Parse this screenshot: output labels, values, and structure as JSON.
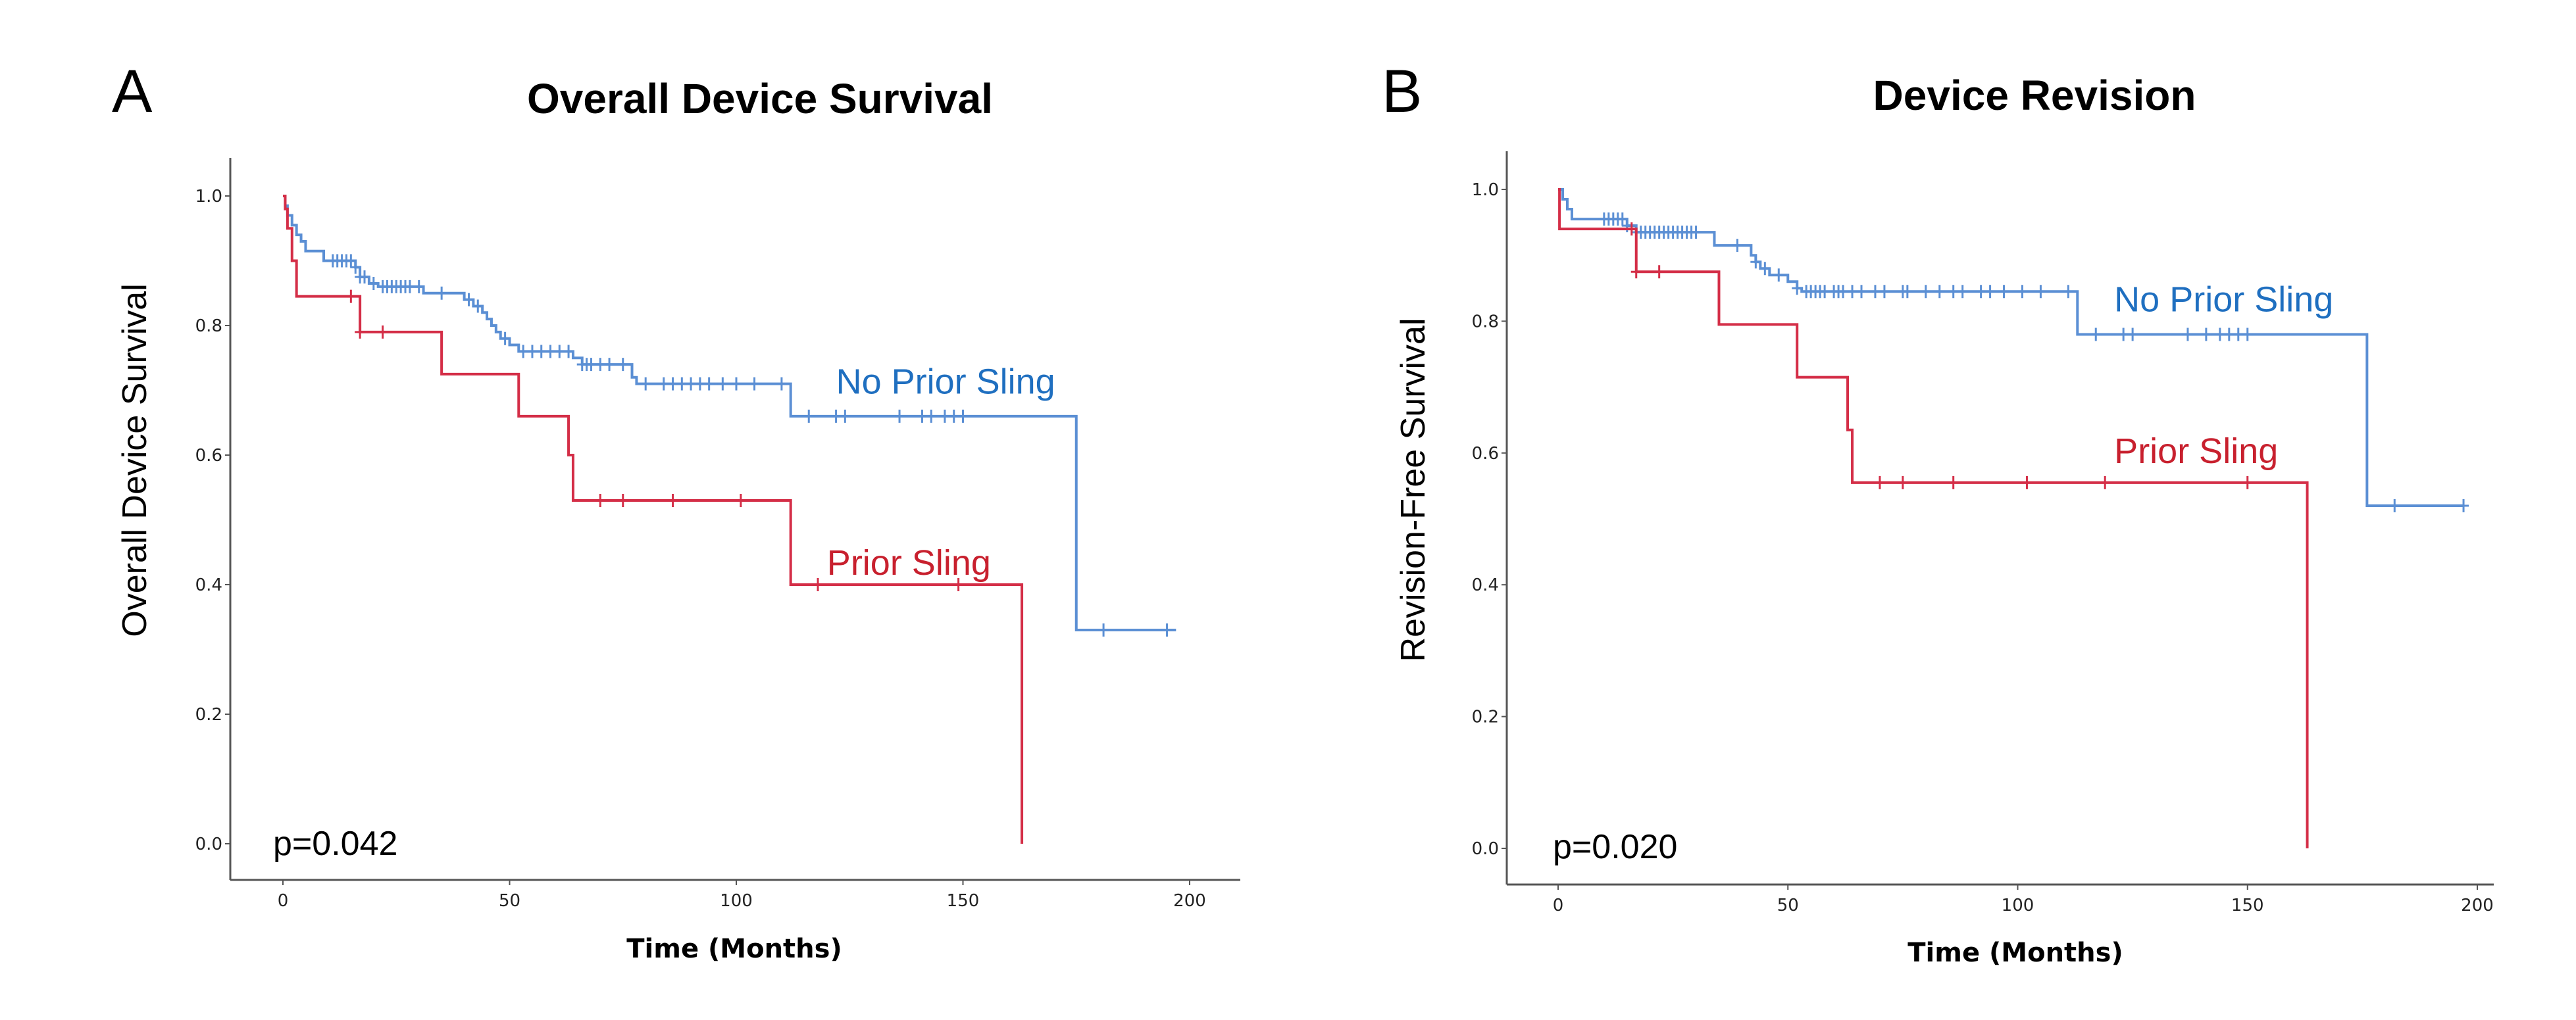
{
  "colors": {
    "no_prior": "#5b8fd4",
    "prior": "#d42e47",
    "no_prior_label": "#1f6fc0",
    "prior_label": "#c8202e"
  },
  "chart_data": [
    {
      "type": "line",
      "panel": "A",
      "title": "Overall Device Survival",
      "xlabel": "Time (Months)",
      "ylabel": "Overall Device Survival",
      "xlim": [
        0,
        200
      ],
      "ylim": [
        0,
        1
      ],
      "xticks": [
        "0",
        "50",
        "100",
        "150",
        "200"
      ],
      "yticks": [
        "0.0",
        "0.2",
        "0.4",
        "0.6",
        "0.8",
        "1.0"
      ],
      "xtick_values": [
        0,
        50,
        100,
        150,
        200
      ],
      "ytick_values": [
        0,
        0.2,
        0.4,
        0.6,
        0.8,
        1.0
      ],
      "grid": false,
      "annotation": "p=0.042",
      "series": [
        {
          "name": "No Prior Sling",
          "color_key": "no_prior",
          "label_key": "no_prior_label",
          "label_anchor": [
            122,
            0.695
          ],
          "steps": [
            [
              0,
              1.0
            ],
            [
              0.5,
              0.985
            ],
            [
              1,
              0.97
            ],
            [
              2,
              0.955
            ],
            [
              3,
              0.94
            ],
            [
              4,
              0.93
            ],
            [
              5,
              0.915
            ],
            [
              9,
              0.9
            ],
            [
              16,
              0.89
            ],
            [
              17,
              0.875
            ],
            [
              19,
              0.865
            ],
            [
              21,
              0.86
            ],
            [
              31,
              0.85
            ],
            [
              40,
              0.84
            ],
            [
              42,
              0.83
            ],
            [
              44,
              0.82
            ],
            [
              45,
              0.81
            ],
            [
              46,
              0.8
            ],
            [
              47,
              0.79
            ],
            [
              48,
              0.78
            ],
            [
              50,
              0.77
            ],
            [
              52,
              0.76
            ],
            [
              64,
              0.75
            ],
            [
              66,
              0.74
            ],
            [
              77,
              0.72
            ],
            [
              78,
              0.71
            ],
            [
              112,
              0.66
            ],
            [
              175,
              0.33
            ],
            [
              197,
              0.33
            ]
          ],
          "censors": [
            [
              11,
              0.9
            ],
            [
              12,
              0.9
            ],
            [
              13,
              0.9
            ],
            [
              14,
              0.9
            ],
            [
              15,
              0.9
            ],
            [
              16,
              0.89
            ],
            [
              17,
              0.875
            ],
            [
              18,
              0.875
            ],
            [
              20,
              0.865
            ],
            [
              22,
              0.86
            ],
            [
              23,
              0.86
            ],
            [
              24,
              0.86
            ],
            [
              25,
              0.86
            ],
            [
              26,
              0.86
            ],
            [
              27,
              0.86
            ],
            [
              28,
              0.86
            ],
            [
              30,
              0.86
            ],
            [
              35,
              0.85
            ],
            [
              41,
              0.84
            ],
            [
              43,
              0.83
            ],
            [
              49,
              0.78
            ],
            [
              53,
              0.76
            ],
            [
              55,
              0.76
            ],
            [
              57,
              0.76
            ],
            [
              59,
              0.76
            ],
            [
              61,
              0.76
            ],
            [
              63,
              0.76
            ],
            [
              66,
              0.74
            ],
            [
              67,
              0.74
            ],
            [
              68,
              0.74
            ],
            [
              70,
              0.74
            ],
            [
              72,
              0.74
            ],
            [
              75,
              0.74
            ],
            [
              80,
              0.71
            ],
            [
              84,
              0.71
            ],
            [
              86,
              0.71
            ],
            [
              88,
              0.71
            ],
            [
              90,
              0.71
            ],
            [
              92,
              0.71
            ],
            [
              94,
              0.71
            ],
            [
              97,
              0.71
            ],
            [
              100,
              0.71
            ],
            [
              104,
              0.71
            ],
            [
              110,
              0.71
            ],
            [
              116,
              0.66
            ],
            [
              122,
              0.66
            ],
            [
              124,
              0.66
            ],
            [
              136,
              0.66
            ],
            [
              141,
              0.66
            ],
            [
              143,
              0.66
            ],
            [
              146,
              0.66
            ],
            [
              148,
              0.66
            ],
            [
              150,
              0.66
            ],
            [
              181,
              0.33
            ],
            [
              195,
              0.33
            ]
          ]
        },
        {
          "name": "Prior Sling",
          "color_key": "prior",
          "label_key": "prior_label",
          "label_anchor": [
            120,
            0.415
          ],
          "steps": [
            [
              0,
              1.0
            ],
            [
              0.5,
              0.98
            ],
            [
              1,
              0.95
            ],
            [
              2,
              0.9
            ],
            [
              3,
              0.845
            ],
            [
              17,
              0.79
            ],
            [
              35,
              0.725
            ],
            [
              52,
              0.66
            ],
            [
              63,
              0.6
            ],
            [
              64,
              0.53
            ],
            [
              112,
              0.4
            ],
            [
              163,
              0.0
            ]
          ],
          "censors": [
            [
              15,
              0.845
            ],
            [
              17,
              0.79
            ],
            [
              22,
              0.79
            ],
            [
              70,
              0.53
            ],
            [
              75,
              0.53
            ],
            [
              86,
              0.53
            ],
            [
              101,
              0.53
            ],
            [
              118,
              0.4
            ],
            [
              149,
              0.4
            ]
          ]
        }
      ]
    },
    {
      "type": "line",
      "panel": "B",
      "title": "Device Revision",
      "xlabel": "Time (Months)",
      "ylabel": "Revision-Free Survival",
      "xlim": [
        0,
        200
      ],
      "ylim": [
        0,
        1
      ],
      "xticks": [
        "0",
        "50",
        "100",
        "150",
        "200"
      ],
      "yticks": [
        "0.0",
        "0.2",
        "0.4",
        "0.6",
        "0.8",
        "1.0"
      ],
      "xtick_values": [
        0,
        50,
        100,
        150,
        200
      ],
      "ytick_values": [
        0,
        0.2,
        0.4,
        0.6,
        0.8,
        1.0
      ],
      "grid": false,
      "annotation": "p=0.020",
      "series": [
        {
          "name": "No Prior Sling",
          "color_key": "no_prior",
          "label_key": "no_prior_label",
          "label_anchor": [
            121,
            0.815
          ],
          "steps": [
            [
              0,
              1.0
            ],
            [
              1,
              0.985
            ],
            [
              2,
              0.97
            ],
            [
              3,
              0.955
            ],
            [
              15,
              0.945
            ],
            [
              17,
              0.935
            ],
            [
              34,
              0.915
            ],
            [
              42,
              0.9
            ],
            [
              43,
              0.89
            ],
            [
              44,
              0.88
            ],
            [
              46,
              0.87
            ],
            [
              50,
              0.86
            ],
            [
              52,
              0.85
            ],
            [
              53,
              0.845
            ],
            [
              113,
              0.78
            ],
            [
              176,
              0.52
            ],
            [
              197,
              0.52
            ]
          ],
          "censors": [
            [
              10,
              0.955
            ],
            [
              11,
              0.955
            ],
            [
              12,
              0.955
            ],
            [
              13,
              0.955
            ],
            [
              14,
              0.955
            ],
            [
              15,
              0.945
            ],
            [
              17,
              0.935
            ],
            [
              18,
              0.935
            ],
            [
              19,
              0.935
            ],
            [
              20,
              0.935
            ],
            [
              21,
              0.935
            ],
            [
              22,
              0.935
            ],
            [
              23,
              0.935
            ],
            [
              24,
              0.935
            ],
            [
              25,
              0.935
            ],
            [
              26,
              0.935
            ],
            [
              27,
              0.935
            ],
            [
              28,
              0.935
            ],
            [
              29,
              0.935
            ],
            [
              30,
              0.935
            ],
            [
              39,
              0.915
            ],
            [
              43,
              0.89
            ],
            [
              45,
              0.88
            ],
            [
              48,
              0.87
            ],
            [
              52,
              0.85
            ],
            [
              54,
              0.845
            ],
            [
              55,
              0.845
            ],
            [
              56,
              0.845
            ],
            [
              57,
              0.845
            ],
            [
              58,
              0.845
            ],
            [
              60,
              0.845
            ],
            [
              61,
              0.845
            ],
            [
              62,
              0.845
            ],
            [
              64,
              0.845
            ],
            [
              66,
              0.845
            ],
            [
              69,
              0.845
            ],
            [
              71,
              0.845
            ],
            [
              75,
              0.845
            ],
            [
              76,
              0.845
            ],
            [
              80,
              0.845
            ],
            [
              83,
              0.845
            ],
            [
              86,
              0.845
            ],
            [
              88,
              0.845
            ],
            [
              92,
              0.845
            ],
            [
              94,
              0.845
            ],
            [
              97,
              0.845
            ],
            [
              101,
              0.845
            ],
            [
              105,
              0.845
            ],
            [
              111,
              0.845
            ],
            [
              117,
              0.78
            ],
            [
              123,
              0.78
            ],
            [
              125,
              0.78
            ],
            [
              137,
              0.78
            ],
            [
              141,
              0.78
            ],
            [
              144,
              0.78
            ],
            [
              146,
              0.78
            ],
            [
              148,
              0.78
            ],
            [
              150,
              0.78
            ],
            [
              182,
              0.52
            ],
            [
              197,
              0.52
            ]
          ]
        },
        {
          "name": "Prior Sling",
          "color_key": "prior",
          "label_key": "prior_label",
          "label_anchor": [
            121,
            0.585
          ],
          "steps": [
            [
              0,
              1.0
            ],
            [
              0.3,
              0.94
            ],
            [
              17,
              0.875
            ],
            [
              35,
              0.795
            ],
            [
              52,
              0.715
            ],
            [
              63,
              0.635
            ],
            [
              64,
              0.555
            ],
            [
              163,
              0.0
            ]
          ],
          "censors": [
            [
              16,
              0.94
            ],
            [
              17,
              0.875
            ],
            [
              22,
              0.875
            ],
            [
              70,
              0.555
            ],
            [
              75,
              0.555
            ],
            [
              86,
              0.555
            ],
            [
              102,
              0.555
            ],
            [
              119,
              0.555
            ],
            [
              150,
              0.555
            ]
          ]
        }
      ]
    }
  ]
}
